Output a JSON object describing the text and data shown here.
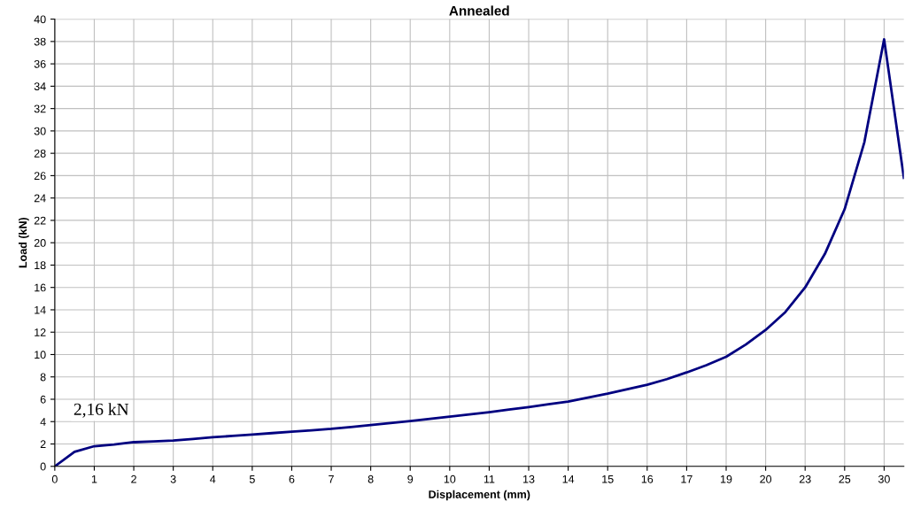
{
  "chart_data": {
    "type": "line",
    "title": "Annealed",
    "xlabel": "Displacement (mm)",
    "ylabel": "Load (kN)",
    "categories": [
      "0",
      null,
      "1",
      null,
      "2",
      null,
      "3",
      null,
      "4",
      null,
      "5",
      null,
      "6",
      null,
      "7",
      null,
      "8",
      null,
      "9",
      null,
      "10",
      null,
      "11",
      null,
      "13",
      null,
      "14",
      null,
      "15",
      null,
      "16",
      null,
      "17",
      null,
      "19",
      null,
      "20",
      null,
      "23",
      null,
      "25",
      null,
      "30",
      null
    ],
    "series": [
      {
        "color": "#000080",
        "values": [
          0,
          1.3,
          1.8,
          1.95,
          2.16,
          2.22,
          2.3,
          2.45,
          2.6,
          2.72,
          2.85,
          2.97,
          3.1,
          3.22,
          3.35,
          3.52,
          3.7,
          3.87,
          4.05,
          4.25,
          4.45,
          4.65,
          4.85,
          5.07,
          5.3,
          5.55,
          5.8,
          6.15,
          6.5,
          6.9,
          7.3,
          7.8,
          8.4,
          9.05,
          9.8,
          10.9,
          12.2,
          13.8,
          16,
          19,
          23,
          29,
          38.2,
          25.8
        ]
      }
    ],
    "ylim": [
      0,
      40
    ],
    "yticks": [
      0,
      2,
      4,
      6,
      8,
      10,
      12,
      14,
      16,
      18,
      20,
      22,
      24,
      26,
      28,
      30,
      32,
      34,
      36,
      38,
      40
    ],
    "grid": true,
    "marker": "none",
    "line_style": "solid",
    "annotations": [
      "2,16 kN"
    ]
  }
}
